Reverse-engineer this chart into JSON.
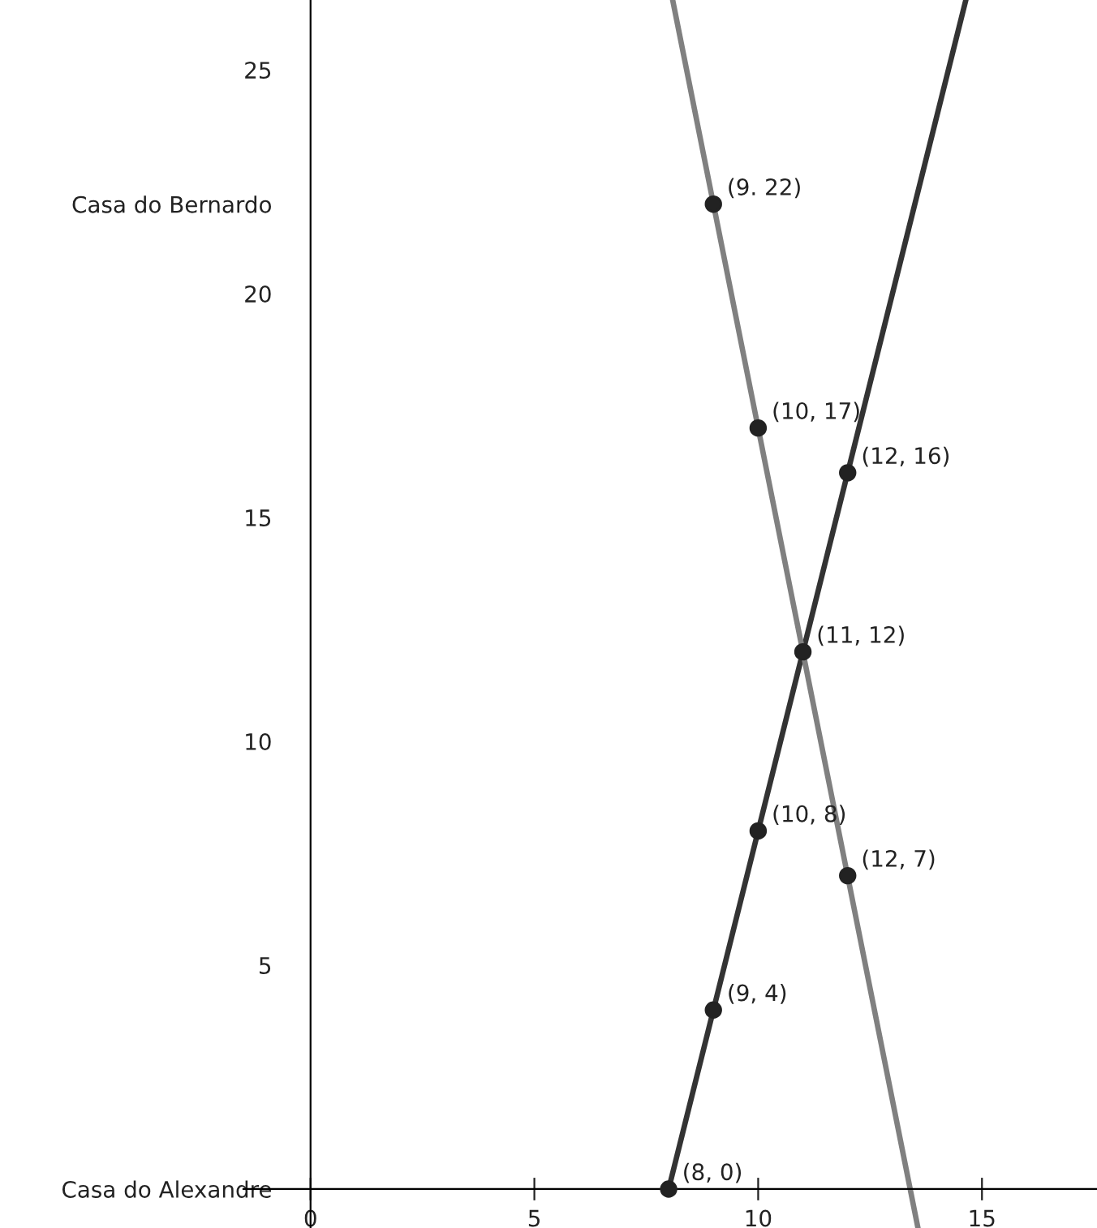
{
  "chart_data": {
    "type": "line",
    "xlim": [
      -1.5,
      17.57
    ],
    "ylim": [
      -0.87,
      26.56
    ],
    "xticks": [
      0,
      5,
      10,
      15
    ],
    "yticks": [
      {
        "value": 0,
        "label": "Casa do Alexandre"
      },
      5,
      10,
      15,
      20,
      {
        "value": 22,
        "label": "Casa do Bernardo"
      },
      25
    ],
    "grid": false,
    "legend": false,
    "series": [
      {
        "color": "#333333",
        "x": [
          8,
          14.64
        ],
        "values": [
          0,
          26.56
        ],
        "marker": "none"
      },
      {
        "color": "#808080",
        "x": [
          8.09,
          13.57
        ],
        "values": [
          26.56,
          -0.87
        ],
        "marker": "none"
      },
      {
        "type": "scatter",
        "color": "#222222",
        "marker": "circle",
        "x": [
          9,
          10,
          12,
          11,
          10,
          12,
          9,
          8
        ],
        "values": [
          22,
          17,
          16,
          12,
          8,
          7,
          4,
          0
        ],
        "value_labels": [
          "(9. 22)",
          "(10, 17)",
          "(12, 16)",
          "(11, 12)",
          "(10, 8)",
          "(12, 7)",
          "(9, 4)",
          "(8, 0)"
        ]
      }
    ]
  }
}
